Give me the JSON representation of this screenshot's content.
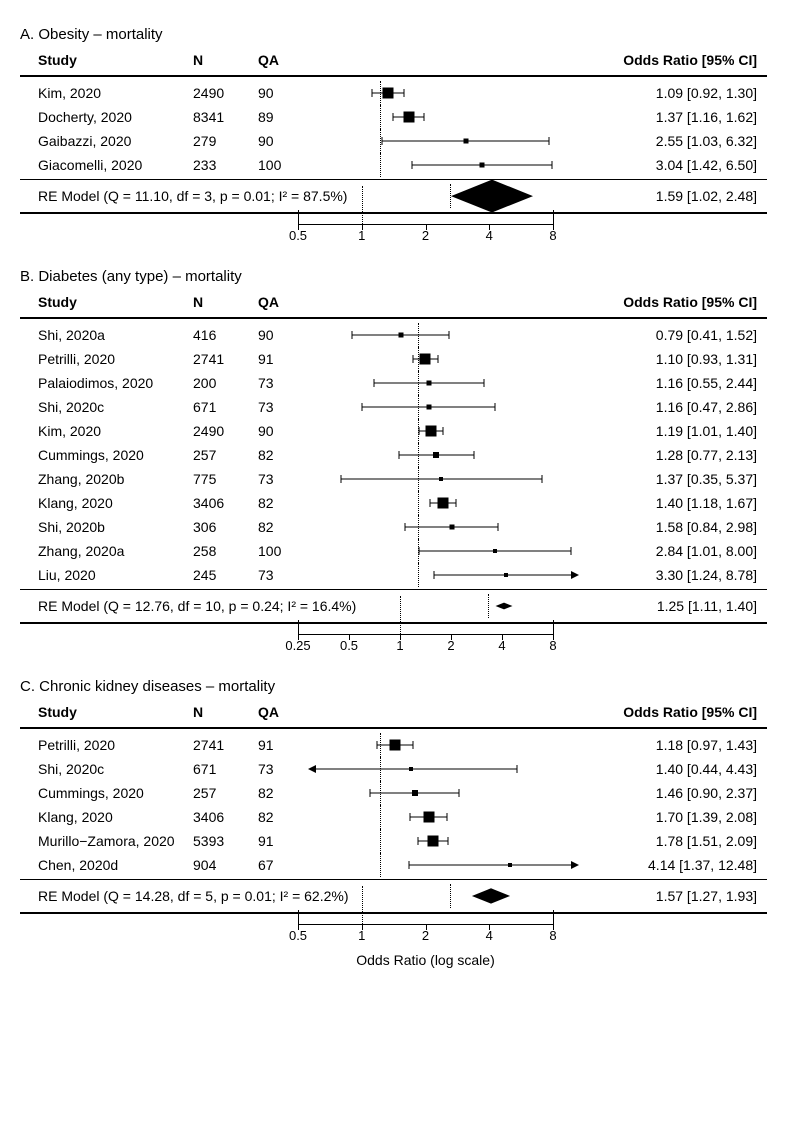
{
  "colors": {
    "fg": "#000000",
    "bg": "#ffffff"
  },
  "x_axis_title": "Odds Ratio (log scale)",
  "header_labels": {
    "study": "Study",
    "n": "N",
    "qa": "QA",
    "or": "Odds Ratio [95% CI]"
  },
  "panels": [
    {
      "id": "A",
      "title": "A. Obesity – mortality",
      "axis": {
        "min": 0.5,
        "max": 8,
        "ticks": [
          0.5,
          1,
          2,
          4,
          8
        ],
        "end_ticks": true,
        "log": true
      },
      "refline": 1,
      "rows": [
        {
          "study": "Kim, 2020",
          "n": 2490,
          "qa": 90,
          "or": 1.09,
          "lcl": 0.92,
          "ucl": 1.3,
          "size": 11,
          "text": "1.09 [0.92, 1.30]"
        },
        {
          "study": "Docherty, 2020",
          "n": 8341,
          "qa": 89,
          "or": 1.37,
          "lcl": 1.16,
          "ucl": 1.62,
          "size": 11,
          "text": "1.37 [1.16, 1.62]"
        },
        {
          "study": "Gaibazzi, 2020",
          "n": 279,
          "qa": 90,
          "or": 2.55,
          "lcl": 1.03,
          "ucl": 6.32,
          "size": 5,
          "text": "2.55 [1.03, 6.32]"
        },
        {
          "study": "Giacomelli, 2020",
          "n": 233,
          "qa": 100,
          "or": 3.04,
          "lcl": 1.42,
          "ucl": 6.5,
          "size": 5,
          "text": "3.04 [1.42, 6.50]"
        }
      ],
      "model": {
        "text": "RE Model (Q = 11.10, df = 3, p = 0.01; I² = 87.5%)",
        "or": 1.59,
        "lcl": 1.02,
        "ucl": 2.48,
        "result_text": "1.59 [1.02, 2.48]"
      }
    },
    {
      "id": "B",
      "title": "B. Diabetes (any type) – mortality",
      "axis": {
        "min": 0.25,
        "max": 8,
        "ticks": [
          0.25,
          0.5,
          1,
          2,
          4,
          8
        ],
        "end_ticks": true,
        "log": true
      },
      "refline": 1,
      "rows": [
        {
          "study": "Shi, 2020a",
          "n": 416,
          "qa": 90,
          "or": 0.79,
          "lcl": 0.41,
          "ucl": 1.52,
          "size": 5,
          "text": "0.79 [0.41, 1.52]"
        },
        {
          "study": "Petrilli, 2020",
          "n": 2741,
          "qa": 91,
          "or": 1.1,
          "lcl": 0.93,
          "ucl": 1.31,
          "size": 11,
          "text": "1.10 [0.93, 1.31]"
        },
        {
          "study": "Palaiodimos, 2020",
          "n": 200,
          "qa": 73,
          "or": 1.16,
          "lcl": 0.55,
          "ucl": 2.44,
          "size": 5,
          "text": "1.16 [0.55, 2.44]"
        },
        {
          "study": "Shi, 2020c",
          "n": 671,
          "qa": 73,
          "or": 1.16,
          "lcl": 0.47,
          "ucl": 2.86,
          "size": 5,
          "text": "1.16 [0.47, 2.86]"
        },
        {
          "study": "Kim, 2020",
          "n": 2490,
          "qa": 90,
          "or": 1.19,
          "lcl": 1.01,
          "ucl": 1.4,
          "size": 11,
          "text": "1.19 [1.01, 1.40]"
        },
        {
          "study": "Cummings, 2020",
          "n": 257,
          "qa": 82,
          "or": 1.28,
          "lcl": 0.77,
          "ucl": 2.13,
          "size": 6,
          "text": "1.28 [0.77, 2.13]"
        },
        {
          "study": "Zhang, 2020b",
          "n": 775,
          "qa": 73,
          "or": 1.37,
          "lcl": 0.35,
          "ucl": 5.37,
          "size": 4,
          "text": "1.37 [0.35, 5.37]"
        },
        {
          "study": "Klang, 2020",
          "n": 3406,
          "qa": 82,
          "or": 1.4,
          "lcl": 1.18,
          "ucl": 1.67,
          "size": 11,
          "text": "1.40 [1.18, 1.67]"
        },
        {
          "study": "Shi, 2020b",
          "n": 306,
          "qa": 82,
          "or": 1.58,
          "lcl": 0.84,
          "ucl": 2.98,
          "size": 5,
          "text": "1.58 [0.84, 2.98]"
        },
        {
          "study": "Zhang, 2020a",
          "n": 258,
          "qa": 100,
          "or": 2.84,
          "lcl": 1.01,
          "ucl": 8.0,
          "size": 4,
          "text": "2.84 [1.01, 8.00]"
        },
        {
          "study": "Liu, 2020",
          "n": 245,
          "qa": 73,
          "or": 3.3,
          "lcl": 1.24,
          "ucl": 8.78,
          "size": 4,
          "text": "3.30 [1.24, 8.78]",
          "ucl_arrow": true
        }
      ],
      "model": {
        "text": "RE Model (Q = 12.76, df = 10, p = 0.24; I² = 16.4%)",
        "or": 1.25,
        "lcl": 1.11,
        "ucl": 1.4,
        "result_text": "1.25 [1.11, 1.40]"
      }
    },
    {
      "id": "C",
      "title": "C. Chronic kidney diseases – mortality",
      "axis": {
        "min": 0.5,
        "max": 8,
        "ticks": [
          0.5,
          1,
          2,
          4,
          8
        ],
        "end_ticks": true,
        "log": true
      },
      "refline": 1,
      "rows": [
        {
          "study": "Petrilli, 2020",
          "n": 2741,
          "qa": 91,
          "or": 1.18,
          "lcl": 0.97,
          "ucl": 1.43,
          "size": 11,
          "text": "1.18 [0.97,  1.43]"
        },
        {
          "study": "Shi, 2020c",
          "n": 671,
          "qa": 73,
          "or": 1.4,
          "lcl": 0.44,
          "ucl": 4.43,
          "size": 4,
          "text": "1.40 [0.44,  4.43]",
          "lcl_arrow": true
        },
        {
          "study": "Cummings, 2020",
          "n": 257,
          "qa": 82,
          "or": 1.46,
          "lcl": 0.9,
          "ucl": 2.37,
          "size": 6,
          "text": "1.46 [0.90,  2.37]"
        },
        {
          "study": "Klang, 2020",
          "n": 3406,
          "qa": 82,
          "or": 1.7,
          "lcl": 1.39,
          "ucl": 2.08,
          "size": 11,
          "text": "1.70 [1.39,  2.08]"
        },
        {
          "study": "Murillo−Zamora, 2020",
          "n": 5393,
          "qa": 91,
          "or": 1.78,
          "lcl": 1.51,
          "ucl": 2.09,
          "size": 11,
          "text": "1.78 [1.51,  2.09]"
        },
        {
          "study": "Chen, 2020d",
          "n": 904,
          "qa": 67,
          "or": 4.14,
          "lcl": 1.37,
          "ucl": 12.48,
          "size": 4,
          "text": "4.14 [1.37, 12.48]",
          "ucl_arrow": true
        }
      ],
      "model": {
        "text": "RE Model (Q = 14.28, df = 5, p = 0.01; I² = 62.2%)",
        "or": 1.57,
        "lcl": 1.27,
        "ucl": 1.93,
        "result_text": "1.57 [1.27, 1.93]"
      }
    }
  ]
}
